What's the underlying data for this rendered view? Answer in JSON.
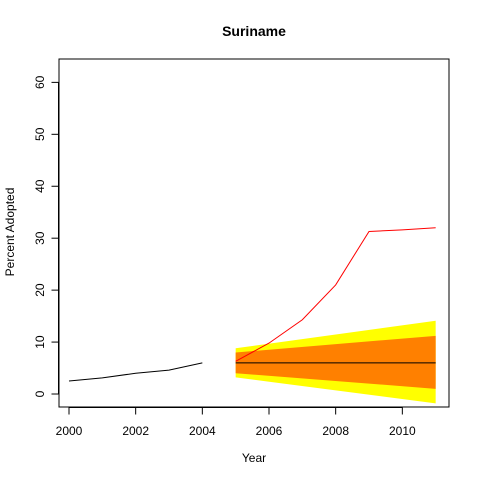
{
  "chart_data": {
    "type": "line",
    "title": "Suriname",
    "xlabel": "Year",
    "ylabel": "Percent Adopted",
    "xlim": [
      1999.7,
      2011.4
    ],
    "ylim": [
      -2.5,
      64.5
    ],
    "x_ticks": [
      2000,
      2002,
      2004,
      2006,
      2008,
      2010
    ],
    "y_ticks": [
      0,
      10,
      20,
      30,
      40,
      50,
      60
    ],
    "grid": false,
    "legend": "none",
    "series": [
      {
        "kind": "observed",
        "color": "#000000",
        "x": [
          2000,
          2001,
          2002,
          2003,
          2004
        ],
        "y": [
          2.5,
          3.1,
          4.0,
          4.6,
          6.0
        ]
      },
      {
        "kind": "actual",
        "color": "#ff0000",
        "x": [
          2005,
          2006,
          2007,
          2008,
          2009,
          2010,
          2011
        ],
        "y": [
          6.3,
          9.8,
          14.3,
          21.0,
          31.3,
          31.6,
          32.0
        ]
      },
      {
        "kind": "projection",
        "color": "#000000",
        "x": [
          2005,
          2011
        ],
        "y": [
          6.0,
          6.0
        ]
      }
    ],
    "bands": [
      {
        "kind": "outer",
        "color": "#ffff00",
        "x": [
          2005,
          2011
        ],
        "lower": [
          3.2,
          -1.8
        ],
        "upper": [
          8.8,
          14.1
        ]
      },
      {
        "kind": "inner",
        "color": "#ff8000",
        "x": [
          2005,
          2011
        ],
        "lower": [
          4.0,
          1.0
        ],
        "upper": [
          8.0,
          11.2
        ]
      }
    ]
  }
}
